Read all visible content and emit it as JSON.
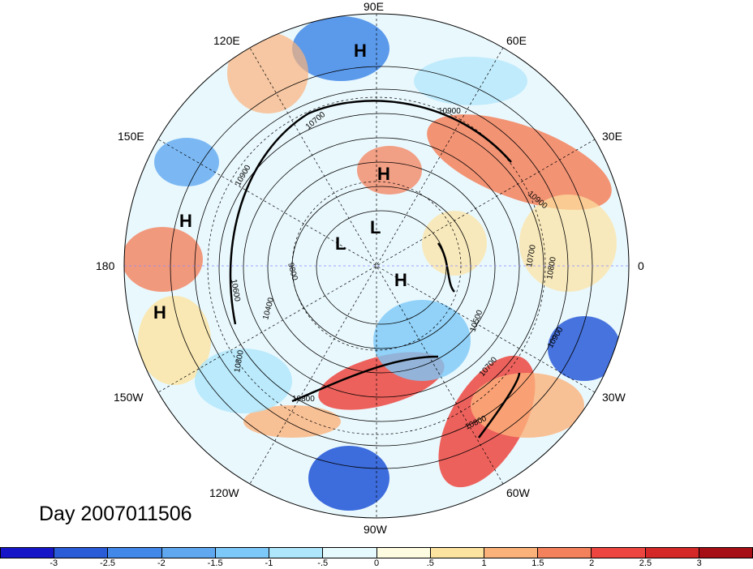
{
  "day_label": "Day 2007011506",
  "lon_labels": [
    {
      "id": "lon-90e",
      "text": "90E"
    },
    {
      "id": "lon-60e",
      "text": "60E"
    },
    {
      "id": "lon-30e",
      "text": "30E"
    },
    {
      "id": "lon-0",
      "text": "0"
    },
    {
      "id": "lon-30w",
      "text": "30W"
    },
    {
      "id": "lon-60w",
      "text": "60W"
    },
    {
      "id": "lon-90w",
      "text": "90W"
    },
    {
      "id": "lon-120w",
      "text": "120W"
    },
    {
      "id": "lon-150w",
      "text": "150W"
    },
    {
      "id": "lon-180",
      "text": "180"
    },
    {
      "id": "lon-150e",
      "text": "150E"
    },
    {
      "id": "lon-120e",
      "text": "120E"
    }
  ],
  "pressure_centers": [
    "H",
    "H",
    "H",
    "L",
    "L",
    "H",
    "H"
  ],
  "contour_labels": [
    "10900",
    "10900",
    "10500",
    "10800",
    "10700",
    "10900",
    "10700",
    "10400",
    "9800",
    "10800",
    "10800",
    "10600",
    "10900",
    "10700",
    "10800"
  ],
  "colorbar": {
    "colors": [
      "#1616c8",
      "#2a5cd8",
      "#4288e8",
      "#5fa8f0",
      "#7cc8f8",
      "#aee6fb",
      "#e6f9fd",
      "#fefce0",
      "#fde3a0",
      "#fbb27a",
      "#f3815c",
      "#ed4640",
      "#d42828",
      "#a50f15"
    ],
    "ticks": [
      "-3",
      "-2.5",
      "-2",
      "-1.5",
      "-1",
      "-.5",
      "0",
      ".5",
      "1",
      "1.5",
      "2",
      "2.5",
      "3"
    ]
  }
}
